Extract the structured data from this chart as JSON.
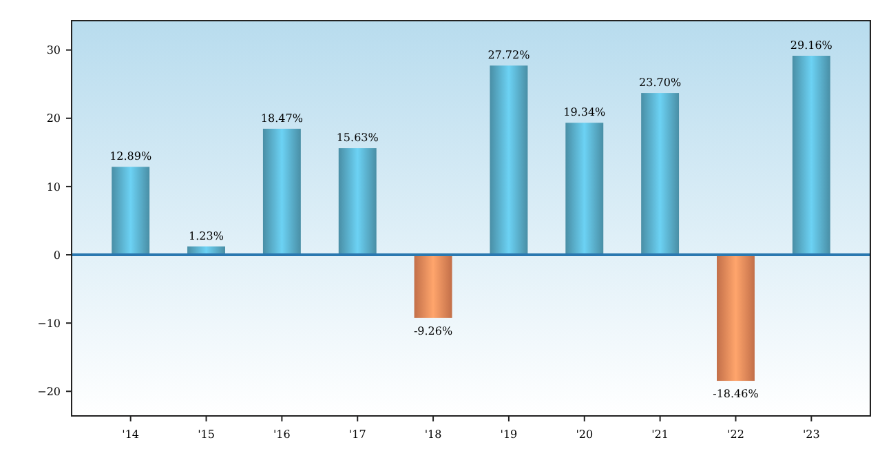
{
  "chart_data": {
    "type": "bar",
    "categories": [
      "'14",
      "'15",
      "'16",
      "'17",
      "'18",
      "'19",
      "'20",
      "'21",
      "'22",
      "'23"
    ],
    "values": [
      12.89,
      1.23,
      18.47,
      15.63,
      -9.26,
      27.72,
      19.34,
      23.7,
      -18.46,
      29.16
    ],
    "colors": [
      "#5ab0cc",
      "#5ab0cc",
      "#5ab0cc",
      "#5ab0cc",
      "#f08a5a",
      "#5ab0cc",
      "#5ab0cc",
      "#5ab0cc",
      "#f08a5a",
      "#5ab0cc"
    ],
    "value_labels": [
      "12.89%",
      "1.23%",
      "18.47%",
      "15.63%",
      "-9.26%",
      "27.72%",
      "19.34%",
      "23.70%",
      "-18.46%",
      "29.16%"
    ],
    "ylim": [
      -23.6,
      34.3
    ],
    "yticks": [
      -20,
      -10,
      0,
      10,
      20,
      30
    ],
    "ref_lines": [
      {
        "axis": "y",
        "value": 0,
        "color": "#2a78b0"
      }
    ]
  }
}
